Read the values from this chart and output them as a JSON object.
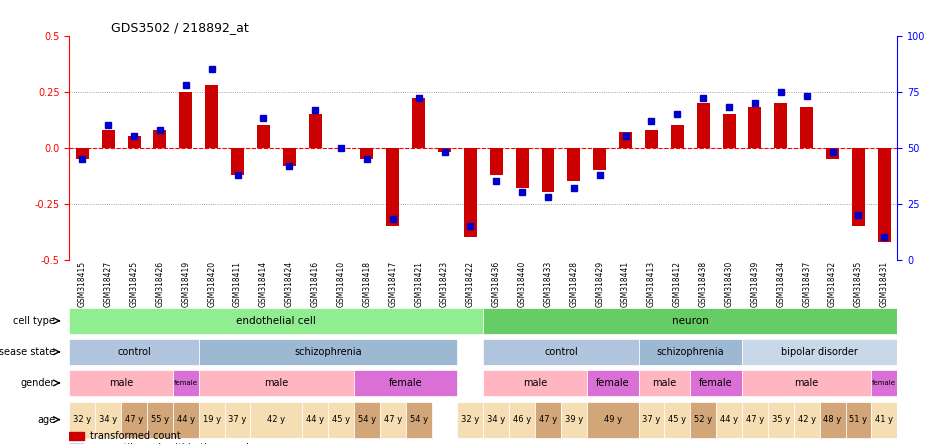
{
  "title": "GDS3502 / 218892_at",
  "samples": [
    "GSM318415",
    "GSM318427",
    "GSM318425",
    "GSM318426",
    "GSM318419",
    "GSM318420",
    "GSM318411",
    "GSM318414",
    "GSM318424",
    "GSM318416",
    "GSM318410",
    "GSM318418",
    "GSM318417",
    "GSM318421",
    "GSM318423",
    "GSM318422",
    "GSM318436",
    "GSM318440",
    "GSM318433",
    "GSM318428",
    "GSM318429",
    "GSM318441",
    "GSM318413",
    "GSM318412",
    "GSM318438",
    "GSM318430",
    "GSM318439",
    "GSM318434",
    "GSM318437",
    "GSM318432",
    "GSM318435",
    "GSM318431"
  ],
  "bar_values": [
    -0.05,
    0.08,
    0.05,
    0.08,
    0.25,
    0.28,
    -0.12,
    0.1,
    -0.08,
    0.15,
    0.0,
    -0.05,
    -0.35,
    0.22,
    -0.02,
    -0.4,
    -0.12,
    -0.18,
    -0.2,
    -0.15,
    -0.1,
    0.07,
    0.08,
    0.1,
    0.2,
    0.15,
    0.18,
    0.2,
    0.18,
    -0.05,
    -0.35,
    -0.42
  ],
  "dot_values": [
    45,
    60,
    55,
    58,
    78,
    85,
    38,
    63,
    42,
    67,
    50,
    45,
    18,
    72,
    48,
    15,
    35,
    30,
    28,
    32,
    38,
    55,
    62,
    65,
    72,
    68,
    70,
    75,
    73,
    48,
    20,
    10
  ],
  "cell_type_groups": [
    {
      "label": "endothelial cell",
      "start": 0,
      "end": 16,
      "color": "#90EE90"
    },
    {
      "label": "neuron",
      "start": 16,
      "end": 32,
      "color": "#66CC66"
    }
  ],
  "disease_state_groups": [
    {
      "label": "control",
      "start": 0,
      "end": 5,
      "color": "#B0C4DE"
    },
    {
      "label": "schizophrenia",
      "start": 5,
      "end": 15,
      "color": "#9DB8D2"
    },
    {
      "label": "control",
      "start": 16,
      "end": 22,
      "color": "#B0C4DE"
    },
    {
      "label": "schizophrenia",
      "start": 22,
      "end": 26,
      "color": "#9DB8D2"
    },
    {
      "label": "bipolar disorder",
      "start": 26,
      "end": 32,
      "color": "#C8D8E8"
    }
  ],
  "gender_groups": [
    {
      "label": "male",
      "start": 0,
      "end": 4,
      "color": "#FFB6C1"
    },
    {
      "label": "female",
      "start": 4,
      "end": 5,
      "color": "#DA70D6"
    },
    {
      "label": "male",
      "start": 5,
      "end": 11,
      "color": "#FFB6C1"
    },
    {
      "label": "female",
      "start": 11,
      "end": 15,
      "color": "#DA70D6"
    },
    {
      "label": "male",
      "start": 16,
      "end": 20,
      "color": "#FFB6C1"
    },
    {
      "label": "female",
      "start": 20,
      "end": 22,
      "color": "#DA70D6"
    },
    {
      "label": "male",
      "start": 22,
      "end": 24,
      "color": "#FFB6C1"
    },
    {
      "label": "female",
      "start": 24,
      "end": 26,
      "color": "#DA70D6"
    },
    {
      "label": "male",
      "start": 26,
      "end": 31,
      "color": "#FFB6C1"
    },
    {
      "label": "female",
      "start": 31,
      "end": 32,
      "color": "#DA70D6"
    }
  ],
  "age_data": [
    {
      "label": "32 y",
      "start": 0,
      "end": 1,
      "color": "#F5DEB3"
    },
    {
      "label": "34 y",
      "start": 1,
      "end": 2,
      "color": "#F5DEB3"
    },
    {
      "label": "47 y",
      "start": 2,
      "end": 3,
      "color": "#D2A679"
    },
    {
      "label": "55 y",
      "start": 3,
      "end": 4,
      "color": "#D2A679"
    },
    {
      "label": "44 y",
      "start": 4,
      "end": 5,
      "color": "#D2A679"
    },
    {
      "label": "19 y",
      "start": 5,
      "end": 6,
      "color": "#F5DEB3"
    },
    {
      "label": "37 y",
      "start": 6,
      "end": 7,
      "color": "#F5DEB3"
    },
    {
      "label": "42 y",
      "start": 7,
      "end": 9,
      "color": "#F5DEB3"
    },
    {
      "label": "44 y",
      "start": 9,
      "end": 10,
      "color": "#F5DEB3"
    },
    {
      "label": "45 y",
      "start": 10,
      "end": 11,
      "color": "#F5DEB3"
    },
    {
      "label": "54 y",
      "start": 11,
      "end": 12,
      "color": "#D2A679"
    },
    {
      "label": "47 y",
      "start": 12,
      "end": 13,
      "color": "#F5DEB3"
    },
    {
      "label": "54 y",
      "start": 13,
      "end": 14,
      "color": "#D2A679"
    },
    {
      "label": "32 y",
      "start": 15,
      "end": 16,
      "color": "#F5DEB3"
    },
    {
      "label": "34 y",
      "start": 16,
      "end": 17,
      "color": "#F5DEB3"
    },
    {
      "label": "46 y",
      "start": 17,
      "end": 18,
      "color": "#F5DEB3"
    },
    {
      "label": "47 y",
      "start": 18,
      "end": 19,
      "color": "#D2A679"
    },
    {
      "label": "39 y",
      "start": 19,
      "end": 20,
      "color": "#F5DEB3"
    },
    {
      "label": "49 y",
      "start": 20,
      "end": 22,
      "color": "#D2A679"
    },
    {
      "label": "37 y",
      "start": 22,
      "end": 23,
      "color": "#F5DEB3"
    },
    {
      "label": "45 y",
      "start": 23,
      "end": 24,
      "color": "#F5DEB3"
    },
    {
      "label": "52 y",
      "start": 24,
      "end": 25,
      "color": "#D2A679"
    },
    {
      "label": "44 y",
      "start": 25,
      "end": 26,
      "color": "#F5DEB3"
    },
    {
      "label": "47 y",
      "start": 26,
      "end": 27,
      "color": "#F5DEB3"
    },
    {
      "label": "35 y",
      "start": 27,
      "end": 28,
      "color": "#F5DEB3"
    },
    {
      "label": "42 y",
      "start": 28,
      "end": 29,
      "color": "#F5DEB3"
    },
    {
      "label": "48 y",
      "start": 29,
      "end": 30,
      "color": "#D2A679"
    },
    {
      "label": "51 y",
      "start": 30,
      "end": 31,
      "color": "#D2A679"
    },
    {
      "label": "41 y",
      "start": 31,
      "end": 32,
      "color": "#F5DEB3"
    }
  ],
  "ylim": [
    -0.5,
    0.5
  ],
  "yticks": [
    -0.5,
    -0.25,
    0.0,
    0.25,
    0.5
  ],
  "right_yticks": [
    0,
    25,
    50,
    75,
    100
  ],
  "bar_color": "#CC0000",
  "dot_color": "#0000CC",
  "grid_color": "#888888",
  "label_left": "cell type",
  "label_disease": "disease state",
  "label_gender": "gender",
  "label_age": "age"
}
